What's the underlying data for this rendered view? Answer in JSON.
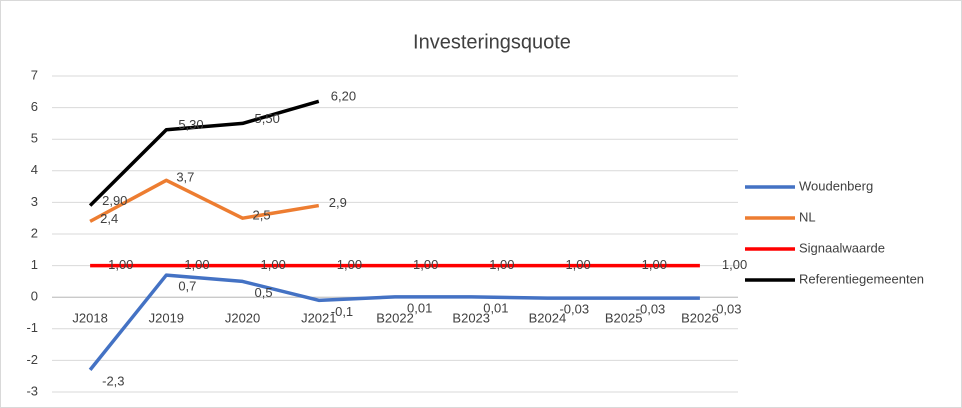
{
  "chart_data": {
    "type": "line",
    "title": "Investeringsquote",
    "categories": [
      "J2018",
      "J2019",
      "J2020",
      "J2021",
      "B2022",
      "B2023",
      "B2024",
      "B2025",
      "B2026"
    ],
    "series": [
      {
        "name": "Woudenberg",
        "color": "#4472c4",
        "values": [
          -2.3,
          0.7,
          0.5,
          -0.1,
          0.01,
          0.01,
          -0.03,
          -0.03,
          -0.03
        ],
        "value_labels": [
          "-2,3",
          "0,7",
          "0,5",
          "-0,1",
          "0,01",
          "0,01",
          "-0,03",
          "-0,03",
          "-0,03"
        ]
      },
      {
        "name": "NL",
        "color": "#ed7d31",
        "values": [
          2.4,
          3.7,
          2.5,
          2.9,
          null,
          null,
          null,
          null,
          null
        ],
        "value_labels": [
          "2,4",
          "3,7",
          "2,5",
          "2,9",
          null,
          null,
          null,
          null,
          null
        ]
      },
      {
        "name": "Signaalwaarde",
        "color": "#ff0000",
        "values": [
          1,
          1,
          1,
          1,
          1,
          1,
          1,
          1,
          1
        ],
        "value_labels": [
          "1,00",
          "1,00",
          "1,00",
          "1,00",
          "1,00",
          "1,00",
          "1,00",
          "1,00",
          "1,00"
        ]
      },
      {
        "name": "Referentiegemeenten",
        "color": "#000000",
        "values": [
          2.9,
          5.3,
          5.5,
          6.2,
          null,
          null,
          null,
          null,
          null
        ],
        "value_labels": [
          "2,90",
          "5,30",
          "5,50",
          "6,20",
          null,
          null,
          null,
          null,
          null
        ]
      }
    ],
    "ylim": [
      -3,
      7
    ],
    "yticks": [
      -3,
      -2,
      -1,
      0,
      1,
      2,
      3,
      4,
      5,
      6,
      7
    ],
    "grid": true,
    "legend": "right"
  }
}
